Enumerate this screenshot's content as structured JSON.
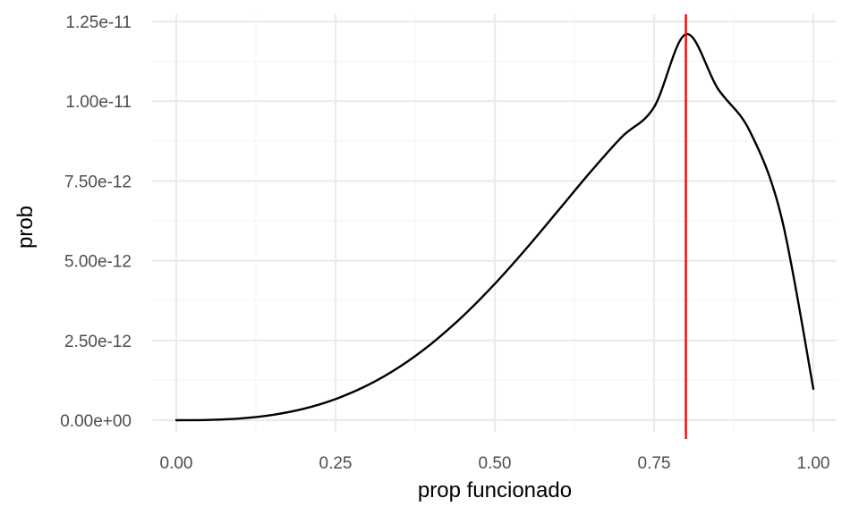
{
  "chart_data": {
    "type": "line",
    "title": "",
    "xlabel": "prop funcionado",
    "ylabel": "prob",
    "xlim": [
      -0.03,
      1.03
    ],
    "ylim": [
      -3.1e-13,
      1.27e-11
    ],
    "x_ticks": [
      0,
      0.25,
      0.5,
      0.75,
      1
    ],
    "x_tick_labels": [
      "0.00",
      "0.25",
      "0.50",
      "0.75",
      "1.00"
    ],
    "y_ticks": [
      0,
      2.5e-12,
      5e-12,
      7.5e-12,
      1e-11,
      1.25e-11
    ],
    "y_tick_labels": [
      "0.00e+00",
      "2.50e-12",
      "5.00e-12",
      "7.50e-12",
      "1.00e-11",
      "1.25e-11"
    ],
    "grid": true,
    "colors": {
      "curve": "#000000",
      "reference_line": "#ff0000",
      "grid_major": "#ebebeb",
      "grid_minor": "#f5f5f5"
    },
    "reference_line": {
      "orientation": "vertical",
      "x": 0.8
    },
    "series": [
      {
        "x": [
          0,
          0.05,
          0.1,
          0.15,
          0.2,
          0.25,
          0.3,
          0.35,
          0.4,
          0.45,
          0.5,
          0.55,
          0.6,
          0.65,
          0.7,
          0.75,
          0.8,
          0.85,
          0.9,
          0.95,
          1.0
        ],
        "values": [
          0,
          9.2e-15,
          5.53e-14,
          1.639e-13,
          3.589e-13,
          6.627e-13,
          1.0943e-12,
          1.6684e-12,
          2.3924e-12,
          3.2651e-12,
          4.2749e-12,
          5.3954e-12,
          6.585e-12,
          7.7782e-12,
          8.8926e-12,
          9.8151e-12,
          1.21e-11,
          1.0396e-11,
          9.0713e-12,
          6.3568e-12,
          9.844e-13
        ]
      }
    ]
  }
}
